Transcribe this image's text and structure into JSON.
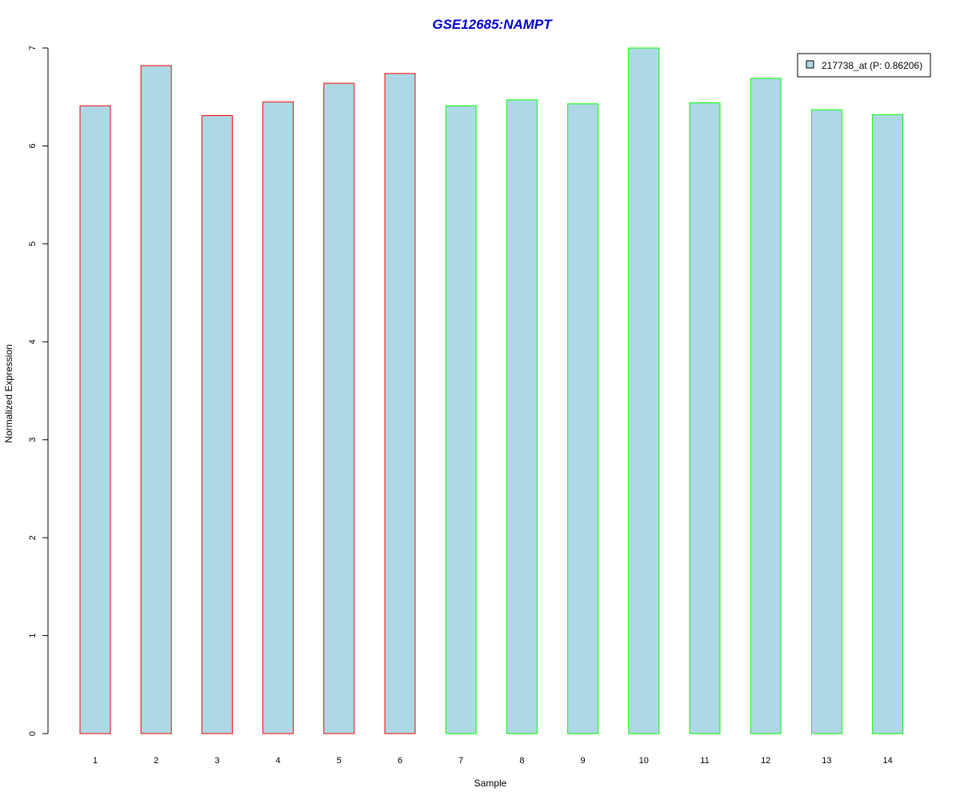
{
  "chart_data": {
    "type": "bar",
    "title": "GSE12685:NAMPT",
    "xlabel": "Sample",
    "ylabel": "Normalized Expression",
    "categories": [
      "1",
      "2",
      "3",
      "4",
      "5",
      "6",
      "7",
      "8",
      "9",
      "10",
      "11",
      "12",
      "13",
      "14"
    ],
    "series": [
      {
        "name": "217738_at (P: 0.86206)",
        "values": [
          6.41,
          6.82,
          6.31,
          6.45,
          6.64,
          6.74,
          6.41,
          6.47,
          6.43,
          7.0,
          6.44,
          6.69,
          6.37,
          6.32
        ]
      }
    ],
    "groups": [
      1,
      1,
      1,
      1,
      1,
      1,
      2,
      2,
      2,
      2,
      2,
      2,
      2,
      2
    ],
    "ylim": [
      0,
      7
    ],
    "yticks": [
      "0",
      "1",
      "2",
      "3",
      "4",
      "5",
      "6",
      "7"
    ],
    "grid": false,
    "legend_position": "top-right",
    "colors": {
      "title": "#0000cd",
      "fill": "#add8e6",
      "group1_border": "#ff0000",
      "group2_border": "#00ff00",
      "axis": "#000000"
    }
  }
}
